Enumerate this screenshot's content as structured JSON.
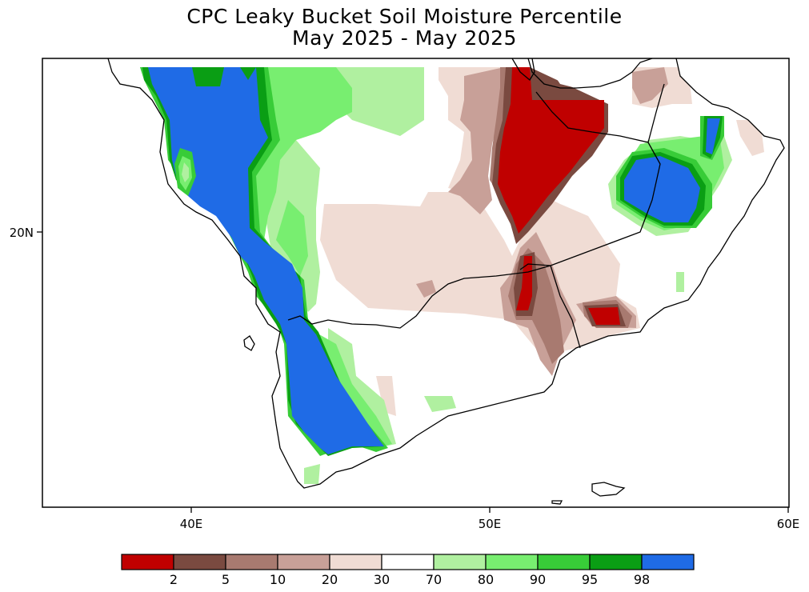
{
  "title": {
    "line1": "CPC Leaky Bucket Soil Moisture Percentile",
    "line2": "May 2025 - May 2025"
  },
  "axes": {
    "x_ticks": [
      "40E",
      "50E",
      "60E"
    ],
    "y_ticks": [
      "20N"
    ]
  },
  "legend": {
    "bins": [
      {
        "color": "#c00000",
        "label": "2"
      },
      {
        "color": "#7a4a40",
        "label": "5"
      },
      {
        "color": "#a87a70",
        "label": "10"
      },
      {
        "color": "#c8a098",
        "label": "20"
      },
      {
        "color": "#f0dcd4",
        "label": "30"
      },
      {
        "color": "#ffffff",
        "label": "70"
      },
      {
        "color": "#b0f0a0",
        "label": "80"
      },
      {
        "color": "#78ee70",
        "label": "90"
      },
      {
        "color": "#38cc38",
        "label": "95"
      },
      {
        "color": "#0a9e14",
        "label": "98"
      },
      {
        "color": "#1f6be6",
        "label": ""
      }
    ]
  }
}
